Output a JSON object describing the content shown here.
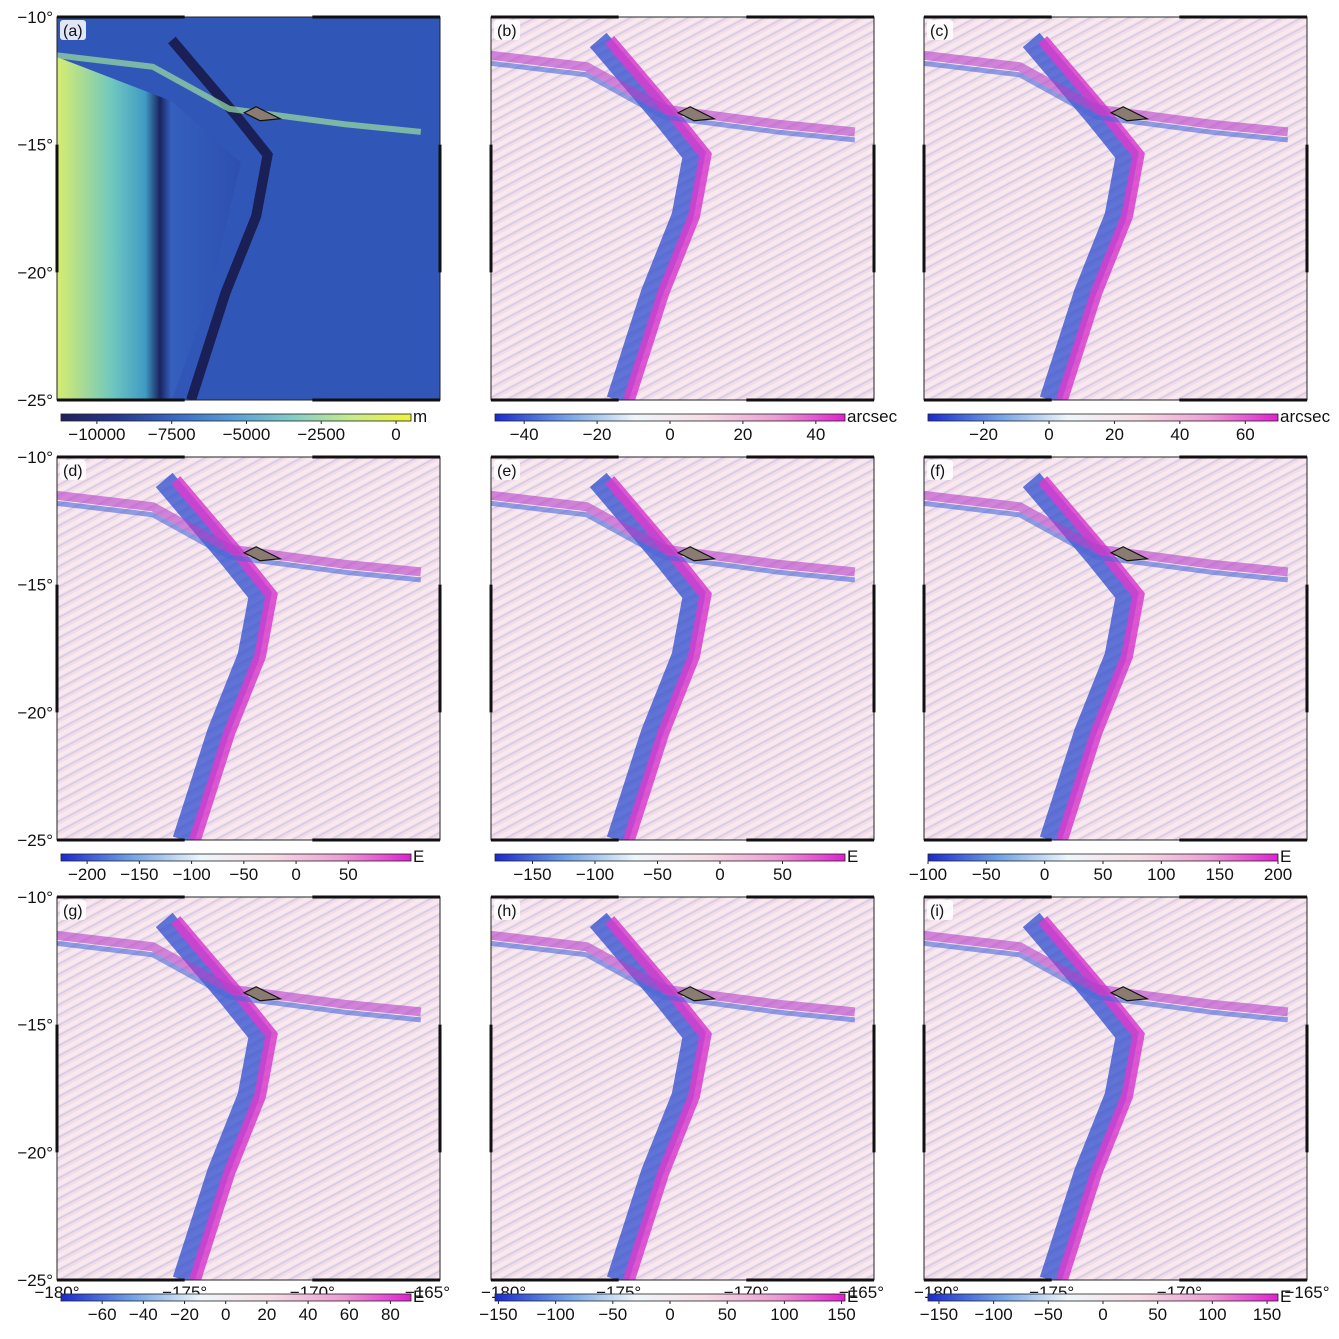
{
  "chart_data": {
    "type": "heatmap",
    "layout": "3x3 grid of map panels",
    "lon_range": [
      -180,
      -165
    ],
    "lat_range": [
      -25,
      -10
    ],
    "lat_ticks": [
      {
        "value": -10,
        "label": "−10°"
      },
      {
        "value": -15,
        "label": "−15°"
      },
      {
        "value": -20,
        "label": "−20°"
      },
      {
        "value": -25,
        "label": "−25°"
      }
    ],
    "lon_ticks": [
      {
        "value": -180,
        "label": "−180°"
      },
      {
        "value": -175,
        "label": "−175°"
      },
      {
        "value": -170,
        "label": "−170°"
      },
      {
        "value": -165,
        "label": "−165°"
      }
    ],
    "colors": {
      "bathymetry": [
        "#20205a",
        "#253a8f",
        "#3a6cc4",
        "#5aa0d8",
        "#86cdc6",
        "#c8ec8a",
        "#f2f23a"
      ],
      "anomaly": [
        "#1a2ad0",
        "#6fa0e6",
        "#eef6fa",
        "#f6dce4",
        "#ec9fd4",
        "#e020d0"
      ],
      "land": "#111111",
      "island": "#8a7c70"
    },
    "panels": [
      {
        "label": "(a)",
        "unit": "m",
        "range": [
          -11200,
          500
        ],
        "ticks": [
          {
            "value": -10000,
            "label": "−10000"
          },
          {
            "value": -7500,
            "label": "−7500"
          },
          {
            "value": -5000,
            "label": "−5000"
          },
          {
            "value": -2500,
            "label": "−2500"
          },
          {
            "value": 0,
            "label": "0"
          }
        ]
      },
      {
        "label": "(b)",
        "unit": "arcsec",
        "range": [
          -48,
          48
        ],
        "ticks": [
          {
            "value": -40,
            "label": "−40"
          },
          {
            "value": -20,
            "label": "−20"
          },
          {
            "value": 0,
            "label": "0"
          },
          {
            "value": 20,
            "label": "20"
          },
          {
            "value": 40,
            "label": "40"
          }
        ]
      },
      {
        "label": "(c)",
        "unit": "arcsec",
        "range": [
          -37,
          70
        ],
        "ticks": [
          {
            "value": -20,
            "label": "−20"
          },
          {
            "value": 0,
            "label": "0"
          },
          {
            "value": 20,
            "label": "20"
          },
          {
            "value": 40,
            "label": "40"
          },
          {
            "value": 60,
            "label": "60"
          }
        ]
      },
      {
        "label": "(d)",
        "unit": "E",
        "range": [
          -225,
          110
        ],
        "ticks": [
          {
            "value": -200,
            "label": "−200"
          },
          {
            "value": -150,
            "label": "−150"
          },
          {
            "value": -100,
            "label": "−100"
          },
          {
            "value": -50,
            "label": "−50"
          },
          {
            "value": 0,
            "label": "0"
          },
          {
            "value": 50,
            "label": "50"
          }
        ]
      },
      {
        "label": "(e)",
        "unit": "E",
        "range": [
          -180,
          100
        ],
        "ticks": [
          {
            "value": -150,
            "label": "−150"
          },
          {
            "value": -100,
            "label": "−100"
          },
          {
            "value": -50,
            "label": "−50"
          },
          {
            "value": 0,
            "label": "0"
          },
          {
            "value": 50,
            "label": "50"
          }
        ]
      },
      {
        "label": "(f)",
        "unit": "E",
        "range": [
          -100,
          200
        ],
        "ticks": [
          {
            "value": -100,
            "label": "−100"
          },
          {
            "value": -50,
            "label": "−50"
          },
          {
            "value": 0,
            "label": "0"
          },
          {
            "value": 50,
            "label": "50"
          },
          {
            "value": 100,
            "label": "100"
          },
          {
            "value": 150,
            "label": "150"
          },
          {
            "value": 200,
            "label": "200"
          }
        ]
      },
      {
        "label": "(g)",
        "unit": "E",
        "range": [
          -80,
          90
        ],
        "ticks": [
          {
            "value": -60,
            "label": "−60"
          },
          {
            "value": -40,
            "label": "−40"
          },
          {
            "value": -20,
            "label": "−20"
          },
          {
            "value": 0,
            "label": "0"
          },
          {
            "value": 20,
            "label": "20"
          },
          {
            "value": 40,
            "label": "40"
          },
          {
            "value": 60,
            "label": "60"
          },
          {
            "value": 80,
            "label": "80"
          }
        ]
      },
      {
        "label": "(h)",
        "unit": "E",
        "range": [
          -153,
          153
        ],
        "ticks": [
          {
            "value": -150,
            "label": "−150"
          },
          {
            "value": -100,
            "label": "−100"
          },
          {
            "value": -50,
            "label": "−50"
          },
          {
            "value": 0,
            "label": "0"
          },
          {
            "value": 50,
            "label": "50"
          },
          {
            "value": 100,
            "label": "100"
          },
          {
            "value": 150,
            "label": "150"
          }
        ]
      },
      {
        "label": "(i)",
        "unit": "E",
        "range": [
          -160,
          160
        ],
        "ticks": [
          {
            "value": -150,
            "label": "−150"
          },
          {
            "value": -100,
            "label": "−100"
          },
          {
            "value": -50,
            "label": "−50"
          },
          {
            "value": 0,
            "label": "0"
          },
          {
            "value": 50,
            "label": "50"
          },
          {
            "value": 100,
            "label": "100"
          },
          {
            "value": 150,
            "label": "150"
          }
        ]
      }
    ]
  }
}
